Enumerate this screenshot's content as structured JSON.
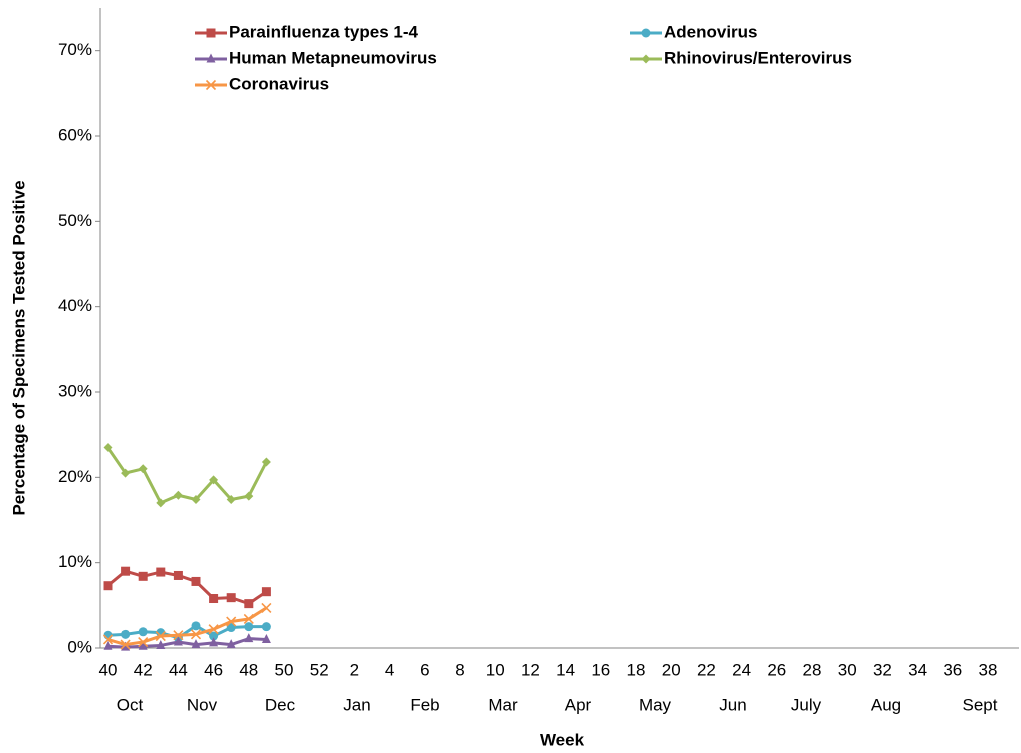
{
  "chart_data": {
    "type": "line",
    "y_label": "Percentage of Specimens Tested Positive",
    "x_label": "Week",
    "categories": [
      "40",
      null,
      "42",
      null,
      "44",
      null,
      "46",
      null,
      "48",
      null,
      "50",
      null,
      "52",
      null,
      "2",
      null,
      "4",
      null,
      "6",
      null,
      "8",
      null,
      "10",
      null,
      "12",
      null,
      "14",
      null,
      "16",
      null,
      "18",
      null,
      "20",
      null,
      "22",
      null,
      "24",
      null,
      "26",
      null,
      "28",
      null,
      "30",
      null,
      "32",
      null,
      "34",
      null,
      "36",
      null,
      "38",
      null
    ],
    "months": [
      "Oct",
      "Nov",
      "Dec",
      "Jan",
      "Feb",
      "Mar",
      "Apr",
      "May",
      "Jun",
      "July",
      "Aug",
      "Sept"
    ],
    "ylim": [
      0,
      75
    ],
    "yticks": [
      {
        "value": 0,
        "label": "0%"
      },
      {
        "value": 10,
        "label": "10%"
      },
      {
        "value": 20,
        "label": "20%"
      },
      {
        "value": 30,
        "label": "30%"
      },
      {
        "value": 40,
        "label": "40%"
      },
      {
        "value": 50,
        "label": "50%"
      },
      {
        "value": 60,
        "label": "60%"
      },
      {
        "value": 70,
        "label": "70%"
      }
    ],
    "grid": false,
    "series": [
      {
        "name": "Parainfluenza types 1-4",
        "color": "#be4b48",
        "marker": "square",
        "values": [
          7.3,
          9.0,
          8.4,
          8.9,
          8.5,
          7.8,
          5.8,
          5.9,
          5.2,
          6.6,
          null,
          null,
          null,
          null,
          null,
          null,
          null,
          null,
          null,
          null,
          null,
          null,
          null,
          null,
          null,
          null,
          null,
          null,
          null,
          null,
          null,
          null,
          null,
          null,
          null,
          null,
          null,
          null,
          null,
          null,
          null,
          null,
          null,
          null,
          null,
          null,
          null,
          null,
          null,
          null,
          null,
          null
        ]
      },
      {
        "name": "Adenovirus",
        "color": "#4bacc6",
        "marker": "circle",
        "values": [
          1.5,
          1.6,
          1.9,
          1.8,
          1.2,
          2.6,
          1.4,
          2.4,
          2.5,
          2.5,
          null,
          null,
          null,
          null,
          null,
          null,
          null,
          null,
          null,
          null,
          null,
          null,
          null,
          null,
          null,
          null,
          null,
          null,
          null,
          null,
          null,
          null,
          null,
          null,
          null,
          null,
          null,
          null,
          null,
          null,
          null,
          null,
          null,
          null,
          null,
          null,
          null,
          null,
          null,
          null,
          null,
          null
        ]
      },
      {
        "name": "Human Metapneumovirus",
        "color": "#7f60a0",
        "marker": "triangle",
        "values": [
          0.2,
          0.1,
          0.2,
          0.3,
          0.7,
          0.4,
          0.6,
          0.4,
          1.1,
          1.0,
          null,
          null,
          null,
          null,
          null,
          null,
          null,
          null,
          null,
          null,
          null,
          null,
          null,
          null,
          null,
          null,
          null,
          null,
          null,
          null,
          null,
          null,
          null,
          null,
          null,
          null,
          null,
          null,
          null,
          null,
          null,
          null,
          null,
          null,
          null,
          null,
          null,
          null,
          null,
          null,
          null,
          null
        ]
      },
      {
        "name": "Rhinovirus/Enterovirus",
        "color": "#9bbb59",
        "marker": "diamond",
        "values": [
          23.5,
          20.5,
          21.0,
          17.0,
          17.9,
          17.4,
          19.7,
          17.4,
          17.8,
          21.8,
          null,
          null,
          null,
          null,
          null,
          null,
          null,
          null,
          null,
          null,
          null,
          null,
          null,
          null,
          null,
          null,
          null,
          null,
          null,
          null,
          null,
          null,
          null,
          null,
          null,
          null,
          null,
          null,
          null,
          null,
          null,
          null,
          null,
          null,
          null,
          null,
          null,
          null,
          null,
          null,
          null,
          null
        ]
      },
      {
        "name": "Coronavirus",
        "color": "#f79646",
        "marker": "x",
        "values": [
          1.0,
          0.4,
          0.7,
          1.4,
          1.5,
          1.6,
          2.2,
          3.1,
          3.4,
          4.7,
          null,
          null,
          null,
          null,
          null,
          null,
          null,
          null,
          null,
          null,
          null,
          null,
          null,
          null,
          null,
          null,
          null,
          null,
          null,
          null,
          null,
          null,
          null,
          null,
          null,
          null,
          null,
          null,
          null,
          null,
          null,
          null,
          null,
          null,
          null,
          null,
          null,
          null,
          null,
          null,
          null,
          null
        ]
      }
    ]
  }
}
